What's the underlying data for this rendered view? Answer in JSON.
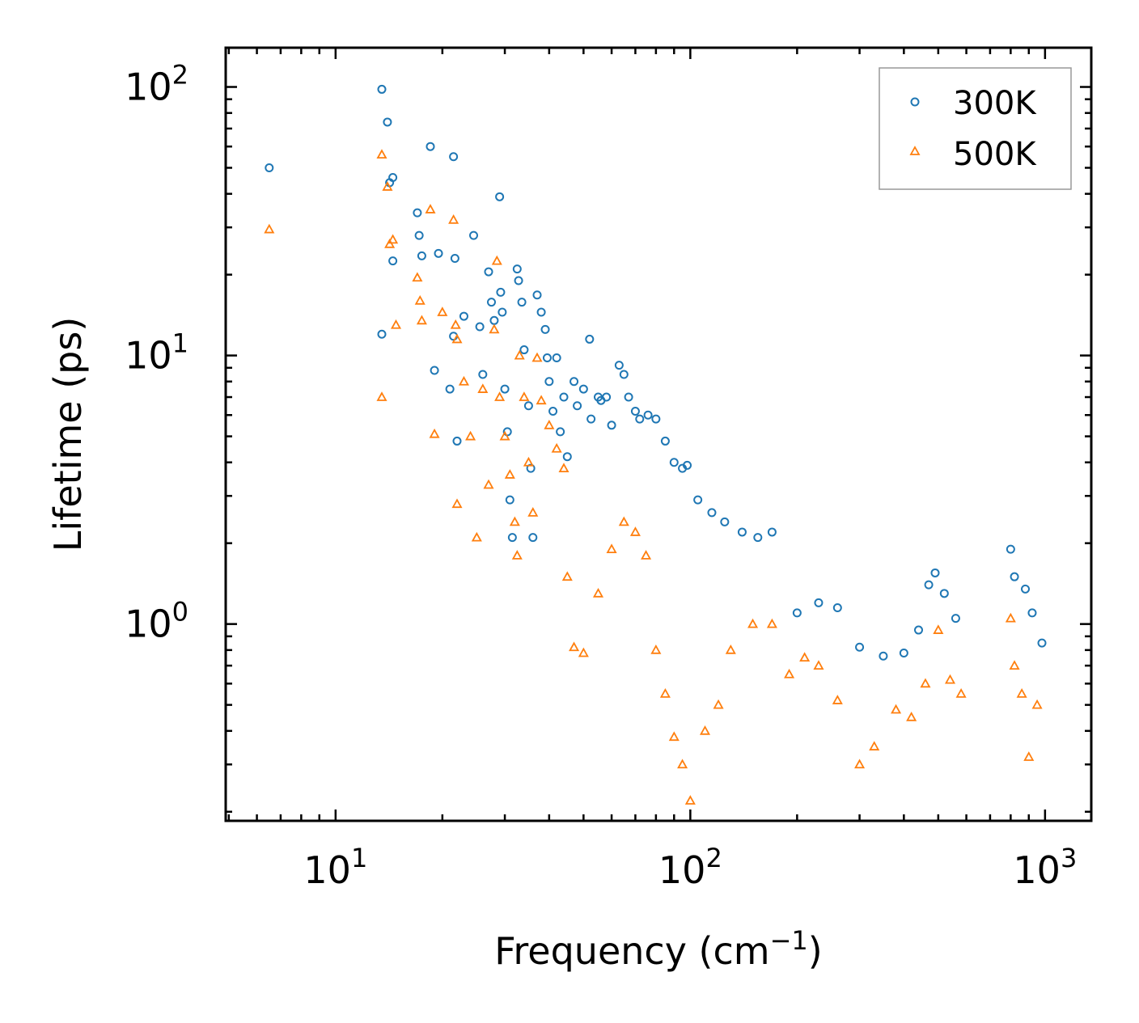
{
  "chart_data": {
    "type": "scatter",
    "xscale": "log",
    "yscale": "log",
    "xlim": [
      4.9,
      1350
    ],
    "ylim": [
      0.185,
      140
    ],
    "xlabel": "Frequency (cm",
    "xlabel_sup": "−1",
    "xlabel_close": ")",
    "ylabel": "Lifetime (ps)",
    "x_ticks": [
      {
        "value": 10,
        "base": "10",
        "exp": "1"
      },
      {
        "value": 100,
        "base": "10",
        "exp": "2"
      },
      {
        "value": 1000,
        "base": "10",
        "exp": "3"
      }
    ],
    "y_ticks": [
      {
        "value": 1,
        "base": "10",
        "exp": "0"
      },
      {
        "value": 10,
        "base": "10",
        "exp": "1"
      },
      {
        "value": 100,
        "base": "10",
        "exp": "2"
      }
    ],
    "legend_position": "top-right",
    "series": [
      {
        "name": "300K",
        "marker": "circle",
        "color": "#1f77b4",
        "points": [
          [
            6.5,
            50
          ],
          [
            13.5,
            98
          ],
          [
            14.0,
            74
          ],
          [
            14.2,
            44
          ],
          [
            14.5,
            46
          ],
          [
            14.5,
            22.5
          ],
          [
            13.5,
            12.0
          ],
          [
            17.0,
            34
          ],
          [
            17.2,
            28
          ],
          [
            17.5,
            23.5
          ],
          [
            18.5,
            60
          ],
          [
            19.5,
            24
          ],
          [
            19.0,
            8.8
          ],
          [
            21.5,
            55
          ],
          [
            21.7,
            23
          ],
          [
            21.5,
            11.8
          ],
          [
            21.0,
            7.5
          ],
          [
            22.0,
            4.8
          ],
          [
            23.0,
            14.0
          ],
          [
            24.5,
            28
          ],
          [
            25.5,
            12.8
          ],
          [
            26.0,
            8.5
          ],
          [
            27.0,
            20.5
          ],
          [
            27.5,
            15.8
          ],
          [
            28.0,
            13.5
          ],
          [
            29.0,
            39
          ],
          [
            29.2,
            17.2
          ],
          [
            29.5,
            14.5
          ],
          [
            30.0,
            7.5
          ],
          [
            30.5,
            5.2
          ],
          [
            31.0,
            2.9
          ],
          [
            31.5,
            2.1
          ],
          [
            32.5,
            21.0
          ],
          [
            32.8,
            19.0
          ],
          [
            33.5,
            15.8
          ],
          [
            34.0,
            10.5
          ],
          [
            35.0,
            6.5
          ],
          [
            35.5,
            3.8
          ],
          [
            36.0,
            2.1
          ],
          [
            37.0,
            16.8
          ],
          [
            38.0,
            14.5
          ],
          [
            39.0,
            12.5
          ],
          [
            39.5,
            9.8
          ],
          [
            40.0,
            8.0
          ],
          [
            41.0,
            6.2
          ],
          [
            42.0,
            9.8
          ],
          [
            43.0,
            5.2
          ],
          [
            44.0,
            7.0
          ],
          [
            45.0,
            4.2
          ],
          [
            47.0,
            8.0
          ],
          [
            48.0,
            6.5
          ],
          [
            50.0,
            7.5
          ],
          [
            52.0,
            11.5
          ],
          [
            52.5,
            5.8
          ],
          [
            55.0,
            7.0
          ],
          [
            56.0,
            6.8
          ],
          [
            58.0,
            7.0
          ],
          [
            60.0,
            5.5
          ],
          [
            63.0,
            9.2
          ],
          [
            65.0,
            8.5
          ],
          [
            67.0,
            7.0
          ],
          [
            70.0,
            6.2
          ],
          [
            72.0,
            5.8
          ],
          [
            76.0,
            6.0
          ],
          [
            80.0,
            5.8
          ],
          [
            85.0,
            4.8
          ],
          [
            90.0,
            4.0
          ],
          [
            95.0,
            3.8
          ],
          [
            98.0,
            3.9
          ],
          [
            105.0,
            2.9
          ],
          [
            115.0,
            2.6
          ],
          [
            125.0,
            2.4
          ],
          [
            140.0,
            2.2
          ],
          [
            155.0,
            2.1
          ],
          [
            170.0,
            2.2
          ],
          [
            200.0,
            1.1
          ],
          [
            230.0,
            1.2
          ],
          [
            260.0,
            1.15
          ],
          [
            300.0,
            0.82
          ],
          [
            350.0,
            0.76
          ],
          [
            400.0,
            0.78
          ],
          [
            440.0,
            0.95
          ],
          [
            470.0,
            1.4
          ],
          [
            490.0,
            1.55
          ],
          [
            520.0,
            1.3
          ],
          [
            560.0,
            1.05
          ],
          [
            800.0,
            1.9
          ],
          [
            820.0,
            1.5
          ],
          [
            880.0,
            1.35
          ],
          [
            920.0,
            1.1
          ],
          [
            980.0,
            0.85
          ]
        ]
      },
      {
        "name": "500K",
        "marker": "triangle",
        "color": "#ff7f0e",
        "points": [
          [
            6.5,
            29.5
          ],
          [
            13.5,
            56
          ],
          [
            14.0,
            42.5
          ],
          [
            14.2,
            26
          ],
          [
            14.5,
            27
          ],
          [
            14.8,
            13.0
          ],
          [
            13.5,
            7.0
          ],
          [
            17.0,
            19.5
          ],
          [
            17.3,
            16.0
          ],
          [
            17.5,
            13.5
          ],
          [
            18.5,
            35
          ],
          [
            19.0,
            5.1
          ],
          [
            20.0,
            14.5
          ],
          [
            21.5,
            32
          ],
          [
            21.8,
            13.0
          ],
          [
            22.0,
            11.5
          ],
          [
            22.0,
            2.8
          ],
          [
            23.0,
            8.0
          ],
          [
            24.0,
            5.0
          ],
          [
            25.0,
            2.1
          ],
          [
            26.0,
            7.5
          ],
          [
            27.0,
            3.3
          ],
          [
            28.0,
            12.5
          ],
          [
            28.5,
            22.5
          ],
          [
            29.0,
            7.0
          ],
          [
            30.0,
            5.0
          ],
          [
            31.0,
            3.6
          ],
          [
            32.0,
            2.4
          ],
          [
            32.5,
            1.8
          ],
          [
            33.0,
            10.0
          ],
          [
            34.0,
            7.0
          ],
          [
            35.0,
            4.0
          ],
          [
            36.0,
            2.6
          ],
          [
            37.0,
            9.8
          ],
          [
            38.0,
            6.8
          ],
          [
            40.0,
            5.5
          ],
          [
            42.0,
            4.5
          ],
          [
            44.0,
            3.8
          ],
          [
            45.0,
            1.5
          ],
          [
            47.0,
            0.82
          ],
          [
            50.0,
            0.78
          ],
          [
            55.0,
            1.3
          ],
          [
            60.0,
            1.9
          ],
          [
            65.0,
            2.4
          ],
          [
            70.0,
            2.2
          ],
          [
            75.0,
            1.8
          ],
          [
            80.0,
            0.8
          ],
          [
            85.0,
            0.55
          ],
          [
            90.0,
            0.38
          ],
          [
            95.0,
            0.3
          ],
          [
            100.0,
            0.22
          ],
          [
            110.0,
            0.4
          ],
          [
            120.0,
            0.5
          ],
          [
            130.0,
            0.8
          ],
          [
            150.0,
            1.0
          ],
          [
            170.0,
            1.0
          ],
          [
            190.0,
            0.65
          ],
          [
            210.0,
            0.75
          ],
          [
            230.0,
            0.7
          ],
          [
            260.0,
            0.52
          ],
          [
            300.0,
            0.3
          ],
          [
            330.0,
            0.35
          ],
          [
            380.0,
            0.48
          ],
          [
            420.0,
            0.45
          ],
          [
            460.0,
            0.6
          ],
          [
            500.0,
            0.95
          ],
          [
            540.0,
            0.62
          ],
          [
            580.0,
            0.55
          ],
          [
            800.0,
            1.05
          ],
          [
            820.0,
            0.7
          ],
          [
            860.0,
            0.55
          ],
          [
            900.0,
            0.32
          ],
          [
            950.0,
            0.5
          ]
        ]
      }
    ]
  }
}
